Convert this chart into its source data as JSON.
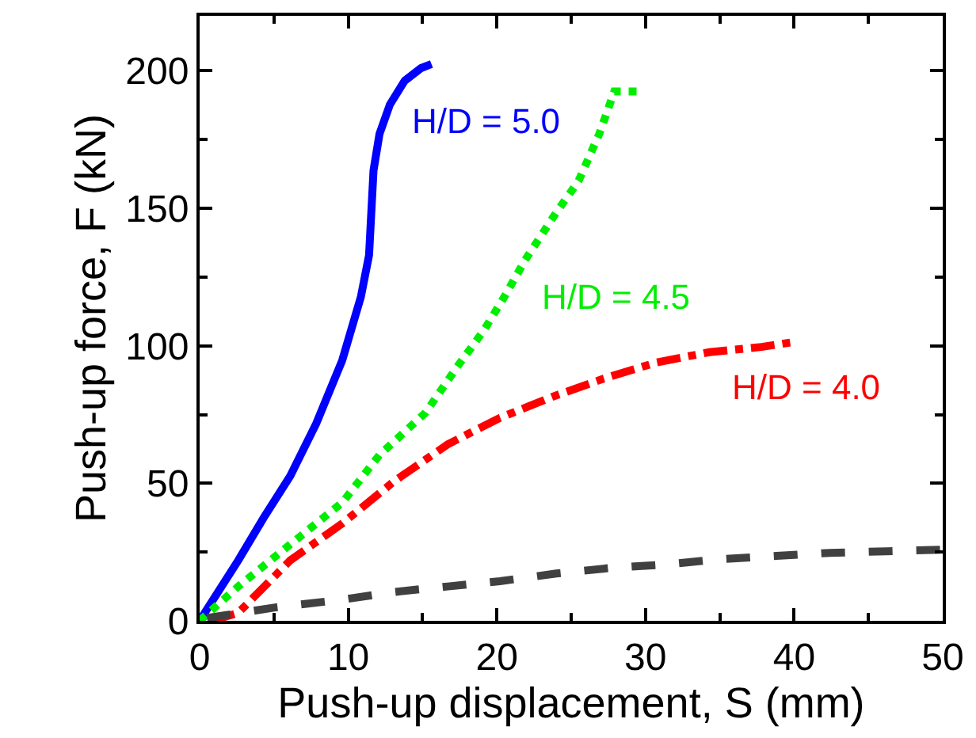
{
  "chart_data": {
    "type": "line",
    "xlabel": "Push-up displacement, S (mm)",
    "ylabel": "Push-up force, F (kN)",
    "xlim": [
      0,
      50
    ],
    "xticks": [
      0,
      10,
      20,
      30,
      40,
      50
    ],
    "ylim": [
      0,
      220
    ],
    "yticks": [
      0,
      50,
      100,
      150,
      200
    ],
    "marker": "none",
    "series": [
      {
        "name": "H/D = 5.0",
        "color": "#0000ff",
        "line_style": "solid",
        "x": [
          0,
          2.6,
          4.3,
          6.1,
          7.85,
          9.6,
          10.85,
          11.4,
          11.7,
          12.1,
          12.8,
          13.8,
          14.9,
          15.6
        ],
        "values": [
          0,
          22,
          37.4,
          52.7,
          71.8,
          94.8,
          117.8,
          133,
          163.8,
          177,
          187.7,
          196.4,
          201,
          202.5
        ]
      },
      {
        "name": "H/D = 4.5",
        "color": "#00ee00",
        "line_style": "dotted",
        "x": [
          0,
          2.6,
          6.1,
          9.6,
          12.1,
          15.2,
          17.4,
          19.1,
          20.5,
          21.9,
          24,
          25.5,
          26.9,
          27.9,
          29.5
        ],
        "values": [
          0,
          12.5,
          27.8,
          43,
          60.3,
          75.7,
          92.9,
          105.4,
          117.8,
          131.2,
          148.5,
          160,
          177.2,
          192.5,
          192.5
        ]
      },
      {
        "name": "H/D = 4.0",
        "color": "#ff0000",
        "line_style": "dashdot",
        "x": [
          0.8,
          2.6,
          6.1,
          9.6,
          13.1,
          16.7,
          20.2,
          23.7,
          27.2,
          30.7,
          34.3,
          37.8,
          40.1
        ],
        "values": [
          0,
          2.9,
          22,
          35.4,
          50.8,
          64.2,
          73.8,
          81.4,
          88.1,
          93.9,
          97.7,
          99.6,
          101.5
        ]
      },
      {
        "color": "#404040",
        "line_style": "dashed",
        "x": [
          0.5,
          5,
          9.6,
          13.1,
          16.7,
          20.2,
          24,
          27.6,
          31.4,
          35,
          38.8,
          42.4,
          46.2,
          50
        ],
        "values": [
          1,
          4.8,
          7.7,
          10.5,
          12.5,
          14.4,
          17.2,
          19.2,
          20.5,
          22.4,
          23.6,
          24.7,
          25.3,
          25.9
        ]
      }
    ]
  }
}
